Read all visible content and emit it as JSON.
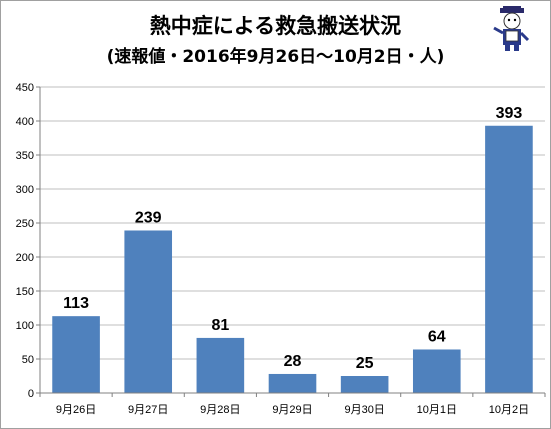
{
  "chart_data": {
    "type": "bar",
    "title": "熱中症による救急搬送状況",
    "subtitle": "(速報値・2016年9月26日～10月2日・人)",
    "categories": [
      "9月26日",
      "9月27日",
      "9月28日",
      "9月29日",
      "9月30日",
      "10月1日",
      "10月2日"
    ],
    "values": [
      113,
      239,
      81,
      28,
      25,
      64,
      393
    ],
    "xlabel": "",
    "ylabel": "",
    "ylim": [
      0,
      450
    ],
    "yticks": [
      0,
      50,
      100,
      150,
      200,
      250,
      300,
      350,
      400,
      450
    ],
    "grid": true,
    "legend": "none",
    "bar_color": "#4f81bd"
  }
}
